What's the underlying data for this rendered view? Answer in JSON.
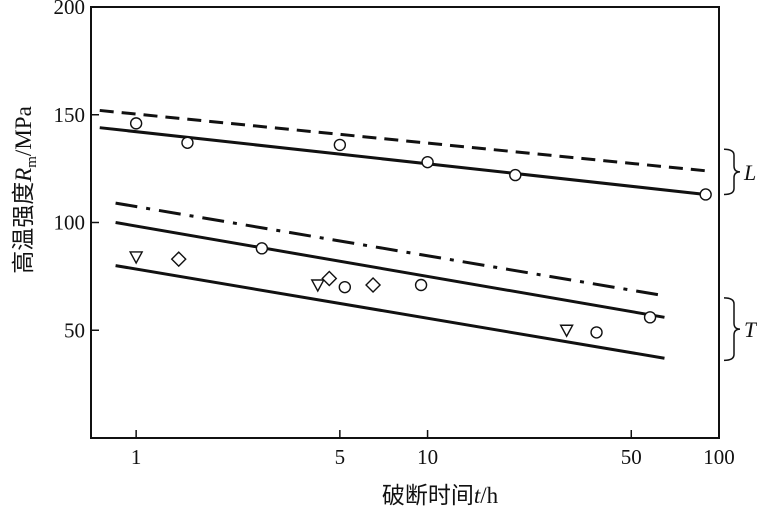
{
  "chart_data": {
    "type": "scatter",
    "xscale": "log",
    "xlim": [
      0.7,
      100
    ],
    "ylim": [
      0,
      200
    ],
    "xticks": [
      {
        "value": 1,
        "label": "1"
      },
      {
        "value": 5,
        "label": "5"
      },
      {
        "value": 10,
        "label": "10"
      },
      {
        "value": 50,
        "label": "50"
      },
      {
        "value": 100,
        "label": "100"
      }
    ],
    "yticks": [
      {
        "value": 50,
        "label": "50"
      },
      {
        "value": 100,
        "label": "100"
      },
      {
        "value": 150,
        "label": "150"
      },
      {
        "value": 200,
        "label": "200"
      }
    ],
    "xlabel": {
      "text": "破断时间",
      "var": "t",
      "unit": "/h"
    },
    "ylabel": {
      "text": "高温强度",
      "var": "R",
      "sub": "m",
      "unit": "/MPa"
    },
    "grid": false,
    "series": [
      {
        "style": "dashed",
        "line": [
          [
            0.75,
            152
          ],
          [
            90,
            124
          ]
        ]
      },
      {
        "style": "solid",
        "line": [
          [
            0.75,
            144
          ],
          [
            90,
            113
          ]
        ],
        "marker": "circle",
        "points": [
          [
            1,
            146
          ],
          [
            1.5,
            137
          ],
          [
            5,
            136
          ],
          [
            10,
            128
          ],
          [
            20,
            122
          ],
          [
            90,
            113
          ]
        ]
      },
      {
        "style": "dashdot",
        "line": [
          [
            0.85,
            109
          ],
          [
            65,
            66
          ]
        ]
      },
      {
        "style": "solid",
        "line": [
          [
            0.85,
            100
          ],
          [
            65,
            56
          ]
        ],
        "marker": "circle",
        "points": [
          [
            2.7,
            88
          ],
          [
            5.2,
            70
          ],
          [
            9.5,
            71
          ],
          [
            38,
            49
          ],
          [
            58,
            56
          ]
        ]
      },
      {
        "style": "solid",
        "line": [
          [
            0.85,
            80
          ],
          [
            65,
            37
          ]
        ],
        "marker": "triangle-down",
        "points": [
          [
            1,
            84
          ],
          [
            4.2,
            71
          ],
          [
            30,
            50
          ]
        ]
      },
      {
        "marker": "diamond",
        "points": [
          [
            1.4,
            83
          ],
          [
            4.6,
            74
          ],
          [
            6.5,
            71
          ]
        ]
      }
    ],
    "annotations": [
      {
        "text": "L",
        "bracket_y": [
          113,
          134
        ]
      },
      {
        "text": "T",
        "bracket_y": [
          36,
          65
        ]
      }
    ]
  }
}
